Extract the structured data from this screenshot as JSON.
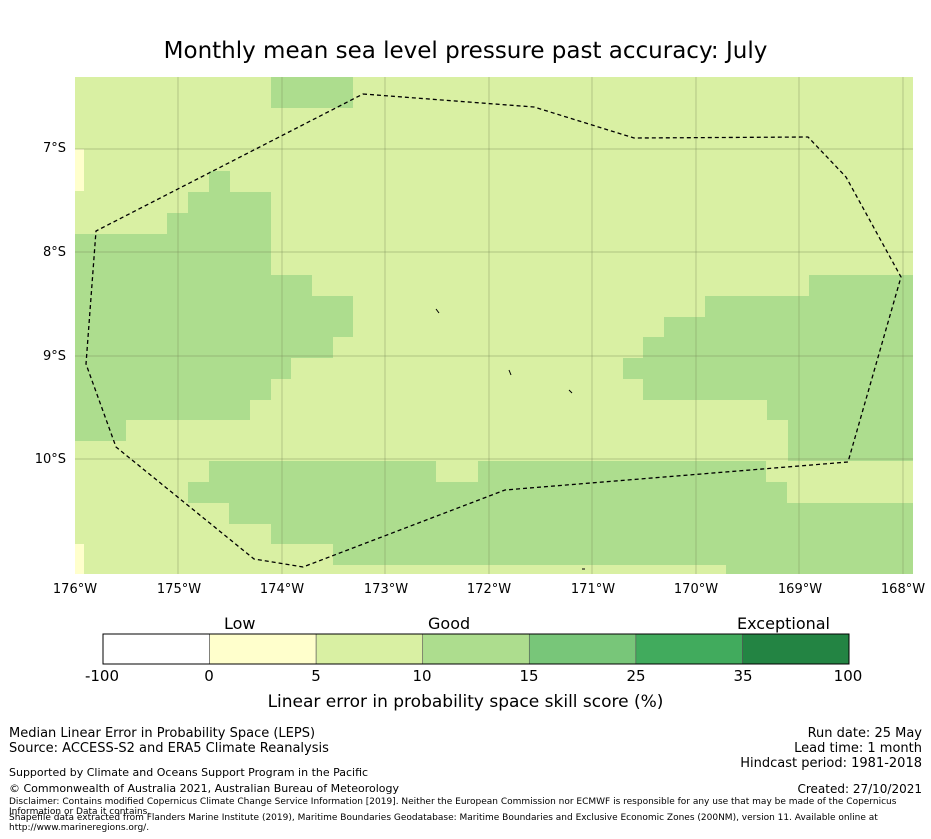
{
  "title": "Monthly mean sea level pressure past accuracy: July",
  "map": {
    "lon_range": [
      -176,
      -168
    ],
    "lat_range": [
      -11.1,
      -6.3
    ],
    "lat_ticks": [
      "7°S",
      "8°S",
      "9°S",
      "10°S"
    ],
    "lon_ticks": [
      "176°W",
      "175°W",
      "174°W",
      "173°W",
      "172°W",
      "171°W",
      "170°W",
      "169°W",
      "168°W"
    ],
    "colors": {
      "band_0_5": "#ffffcc",
      "band_5_10": "#d9f0a3",
      "band_10_15": "#addd8e"
    }
  },
  "colorbar": {
    "categories": [
      "Low",
      "Good",
      "Exceptional"
    ],
    "ticks": [
      "-100",
      "0",
      "5",
      "10",
      "15",
      "25",
      "35",
      "100"
    ],
    "colors": [
      "#ffffff",
      "#ffffcc",
      "#d9f0a3",
      "#addd8e",
      "#78c679",
      "#41ab5d",
      "#238443"
    ],
    "label": "Linear error in probability space skill score (%)"
  },
  "footer": {
    "line1": "Median Linear Error in Probability Space (LEPS)",
    "line2": "Source: ACCESS-S2 and ERA5 Climate Reanalysis",
    "support": "Supported by Climate and Oceans Support Program in the Pacific",
    "copyright": "© Commonwealth of Australia 2021, Australian Bureau of Meteorology",
    "disclaimer": "Disclaimer: Contains modified Copernicus Climate Change Service Information [2019]. Neither the European Commission nor ECMWF is responsible for any use that may be made of the Copernicus Information or Data it contains.",
    "shapefile": "Shapefile data extracted from Flanders Marine Institute (2019), Maritime Boundaries Geodatabase: Maritime Boundaries and Exclusive Economic Zones (200NM), version 11. Available online at http://www.marineregions.org/.",
    "run_date": "Run date: 25 May",
    "lead_time": "Lead time: 1 month",
    "hindcast": "Hindcast period: 1981-2018",
    "created": "Created: 27/10/2021"
  }
}
